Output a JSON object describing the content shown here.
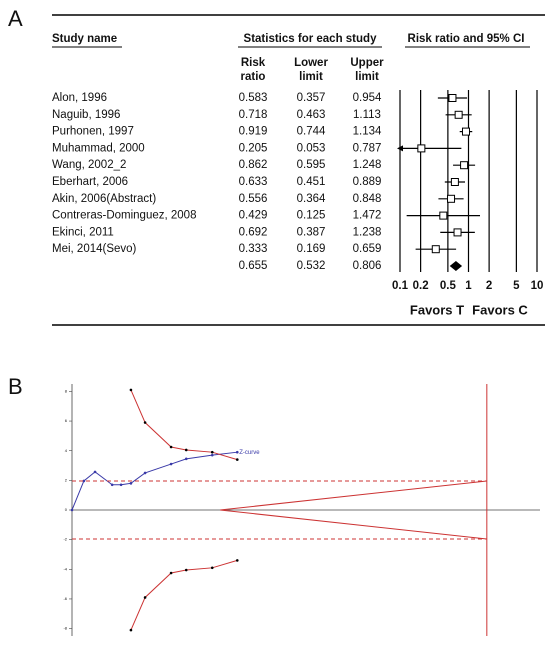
{
  "chart_data": [
    {
      "type": "forest",
      "label": "A",
      "headers": [
        "Study name",
        "Statistics for each study",
        "Risk ratio and 95% CI"
      ],
      "subheaders": [
        [
          "Risk",
          "ratio"
        ],
        [
          "Lower",
          "limit"
        ],
        [
          "Upper",
          "limit"
        ]
      ],
      "categories": [
        "Alon, 1996",
        "Naguib, 1996",
        "Purhonen, 1997",
        "Muhammad, 2000",
        "Wang, 2002_2",
        "Eberhart, 2006",
        "Akin, 2006(Abstract)",
        "Contreras-Dominguez, 2008",
        "Ekinci, 2011",
        "Mei, 2014(Sevo)",
        null
      ],
      "values": [
        0.583,
        0.718,
        0.919,
        0.205,
        0.862,
        0.633,
        0.556,
        0.429,
        0.692,
        0.333,
        0.655
      ],
      "lower": [
        0.357,
        0.463,
        0.744,
        0.053,
        0.595,
        0.451,
        0.364,
        0.125,
        0.387,
        0.169,
        0.532
      ],
      "upper": [
        0.954,
        1.113,
        1.134,
        0.787,
        1.248,
        0.889,
        0.848,
        1.472,
        1.238,
        0.659,
        0.806
      ],
      "xlim": [
        0.1,
        10
      ],
      "xticks": [
        0.1,
        0.2,
        0.5,
        1,
        2,
        5,
        10
      ],
      "log_x": true,
      "xlabel_left": "Favors T",
      "xlabel_right": "Favors C"
    },
    {
      "type": "line",
      "label": "B",
      "xlim": [
        0,
        1300
      ],
      "ylim": [
        -8.5,
        8.5
      ],
      "yticks": [
        -8,
        -6,
        -4,
        -2,
        0,
        2,
        4,
        6,
        8
      ],
      "series": [
        {
          "name": "Z-curve",
          "color": "#3a3aa8",
          "x": [
            0,
            36,
            70,
            122,
            149,
            179,
            222,
            301,
            347,
            426,
            502
          ],
          "values": [
            0,
            1.96,
            2.57,
            1.7,
            1.7,
            1.8,
            2.5,
            3.1,
            3.45,
            3.7,
            3.9
          ]
        },
        {
          "color": "#cc3333",
          "markers": true,
          "x": [
            179,
            222,
            301,
            347,
            426,
            502
          ],
          "values": [
            8.1,
            5.9,
            4.25,
            4.05,
            3.9,
            3.4
          ]
        },
        {
          "color": "#cc3333",
          "markers": true,
          "x": [
            179,
            222,
            301,
            347,
            426,
            502
          ],
          "values": [
            -8.1,
            -5.9,
            -4.25,
            -4.05,
            -3.9,
            -3.4
          ]
        },
        {
          "color": "#cc3333",
          "dashed": true,
          "x": [
            0,
            1260
          ],
          "values": [
            1.96,
            1.96
          ]
        },
        {
          "color": "#cc3333",
          "dashed": true,
          "x": [
            0,
            1260
          ],
          "values": [
            -1.96,
            -1.96
          ]
        },
        {
          "color": "#cc3333",
          "x": [
            450,
            1260
          ],
          "values": [
            0,
            1.96
          ]
        },
        {
          "color": "#cc3333",
          "x": [
            450,
            1260
          ],
          "values": [
            0,
            -1.96
          ]
        },
        {
          "color": "#cc3333",
          "x": [
            1260,
            1260
          ],
          "values": [
            8.5,
            -8.5
          ]
        }
      ]
    }
  ]
}
